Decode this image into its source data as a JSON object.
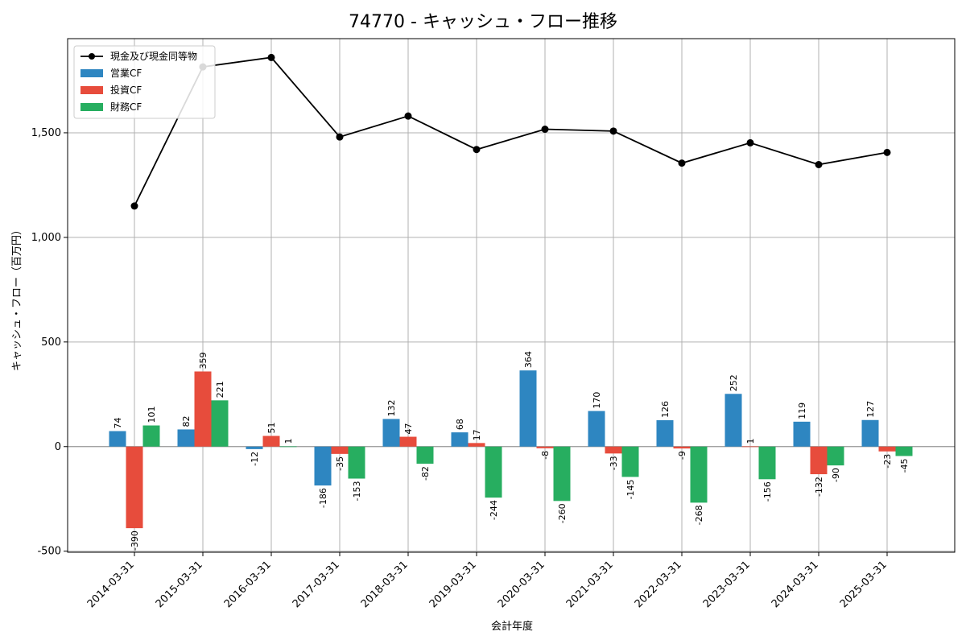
{
  "chart_data": {
    "type": "bar",
    "title": "74770 - キャッシュ・フロー推移",
    "xlabel": "会計年度",
    "ylabel": "キャッシュ・フロー（百万円）",
    "ylim": [
      -505,
      1950
    ],
    "yticks": [
      -500,
      0,
      500,
      1000,
      1500
    ],
    "ytick_labels": [
      "-500",
      "0",
      "500",
      "1,000",
      "1,500"
    ],
    "grid": true,
    "legend_position": "top-left",
    "categories": [
      "2014-03-31",
      "2015-03-31",
      "2016-03-31",
      "2017-03-31",
      "2018-03-31",
      "2019-03-31",
      "2020-03-31",
      "2021-03-31",
      "2022-03-31",
      "2023-03-31",
      "2024-03-31",
      "2025-03-31"
    ],
    "series": [
      {
        "name": "営業CF",
        "kind": "bar",
        "color": "#2e86c1",
        "values": [
          74,
          82,
          -12,
          -186,
          132,
          68,
          364,
          170,
          126,
          252,
          119,
          127
        ],
        "labels": [
          "74",
          "82",
          "-12",
          "-186",
          "132",
          "68",
          "364",
          "170",
          "126",
          "252",
          "119",
          "127"
        ]
      },
      {
        "name": "投資CF",
        "kind": "bar",
        "color": "#e74c3c",
        "values": [
          -390,
          359,
          51,
          -35,
          47,
          17,
          -8,
          -33,
          -9,
          1,
          -132,
          -23
        ],
        "labels": [
          "-390",
          "359",
          "51",
          "-35",
          "47",
          "17",
          "-8",
          "-33",
          "-9",
          "1",
          "-132",
          "-23"
        ]
      },
      {
        "name": "財務CF",
        "kind": "bar",
        "color": "#27ae60",
        "values": [
          101,
          221,
          1,
          -153,
          -82,
          -244,
          -260,
          -145,
          -268,
          -156,
          -90,
          -45
        ],
        "labels": [
          "101",
          "221",
          "1",
          "-153",
          "-82",
          "-244",
          "-260",
          "-145",
          "-268",
          "-156",
          "-90",
          "-45"
        ]
      },
      {
        "name": "現金及び現金同等物",
        "kind": "line",
        "color": "#000000",
        "values": [
          1150,
          1815,
          1860,
          1480,
          1580,
          1420,
          1517,
          1508,
          1355,
          1452,
          1348,
          1406
        ]
      }
    ]
  }
}
